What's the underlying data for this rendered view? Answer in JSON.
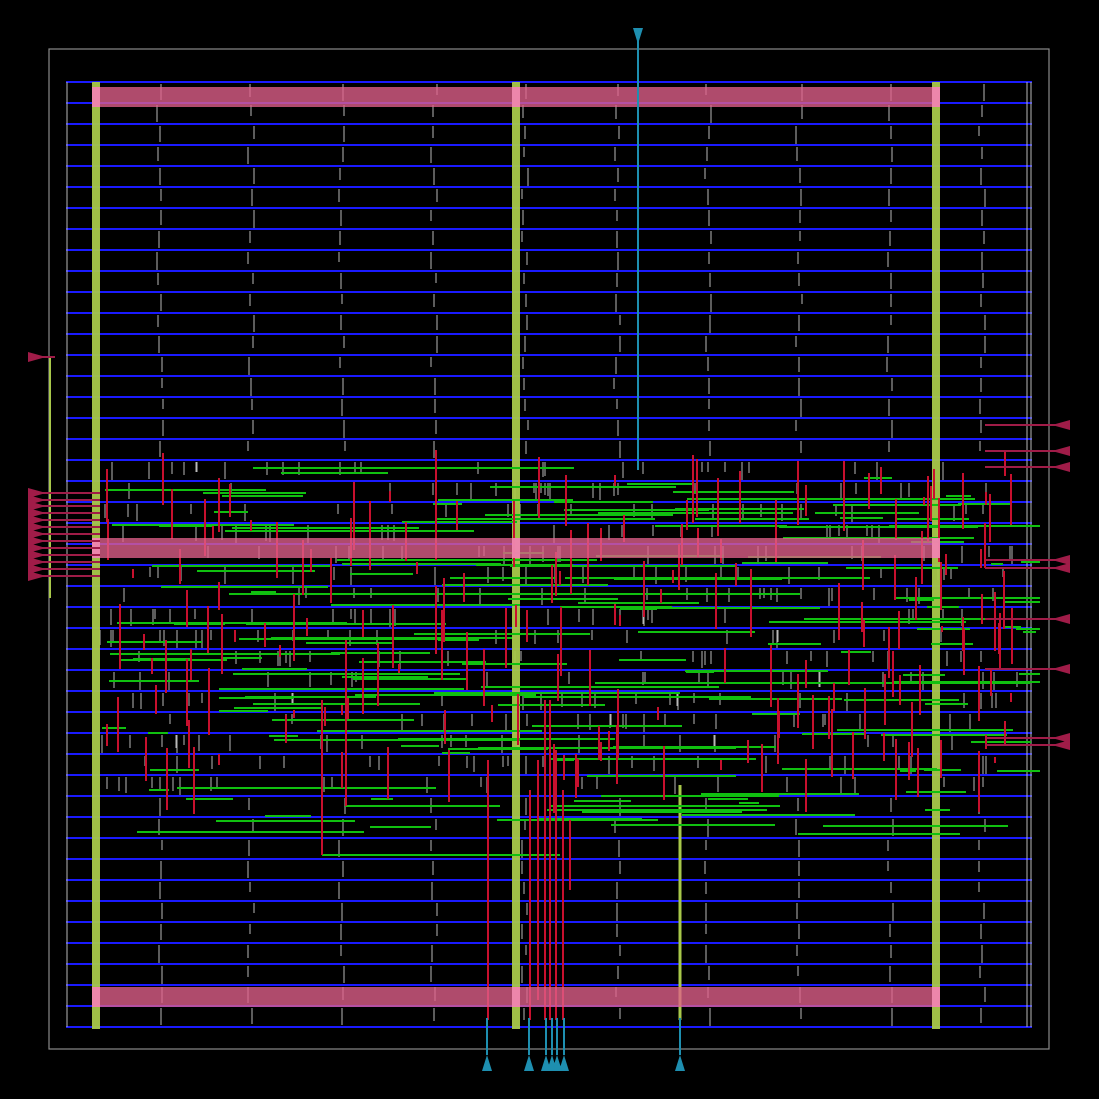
{
  "colors": {
    "background": "#000000",
    "die_outline": "#8a8a8a",
    "met1_rows": "#1a1aff",
    "met2_signal": "#c8102e",
    "met1_signal": "#10c010",
    "power_stripe": "#a8c84a",
    "power_ring": "#e0608a",
    "pin_input": "#1e8fb0",
    "pin_output": "#a01c48",
    "cell_mark": "#b8b8b8"
  },
  "layers": [
    {
      "name": "die-area",
      "color": "die_outline"
    },
    {
      "name": "standard-cell-rows",
      "color": "met1_rows"
    },
    {
      "name": "vertical-routing",
      "color": "met2_signal"
    },
    {
      "name": "horizontal-routing",
      "color": "met1_signal"
    },
    {
      "name": "power-straps",
      "color": "power_stripe"
    },
    {
      "name": "power-rails",
      "color": "power_ring"
    },
    {
      "name": "io-pins-top-bottom",
      "color": "pin_input"
    },
    {
      "name": "io-pins-left-right",
      "color": "pin_output"
    }
  ],
  "pins": {
    "top_count": 1,
    "bottom_count": 7,
    "left_count": 12,
    "right_count": 11
  }
}
